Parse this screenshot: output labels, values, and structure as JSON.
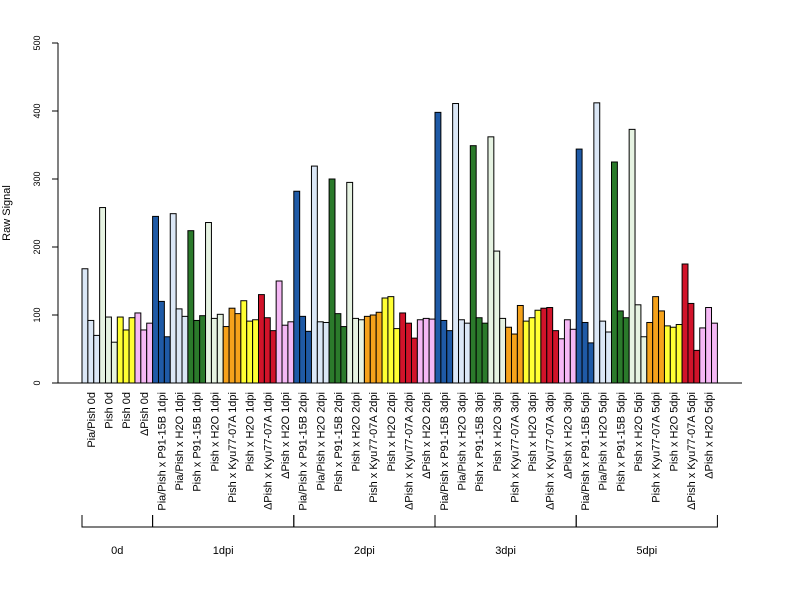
{
  "chart_data": {
    "type": "bar",
    "ylabel": "Raw Signal",
    "ylim": [
      0,
      500
    ],
    "yticks": [
      "0",
      "100",
      "200",
      "300",
      "400",
      "500"
    ],
    "grid": false,
    "colors": {
      "darkblue": "#1f5aa6",
      "lightblue": "#dbe7f6",
      "darkgreen": "#2b7a2b",
      "lightgreen": "#e6f3e2",
      "orange": "#f5a21b",
      "yellow": "#ffff33",
      "red": "#d1132a",
      "pink": "#f5b8f5"
    },
    "categories": [
      {
        "label": "Pia/Pish 0d",
        "color": "lightblue",
        "values": [
          168,
          92,
          70
        ]
      },
      {
        "label": "Pish 0d",
        "color": "lightgreen",
        "values": [
          258,
          97,
          60
        ]
      },
      {
        "label": "Pish 0d",
        "color": "yellow",
        "values": [
          97,
          78,
          96
        ]
      },
      {
        "label": "ΔPish 0d",
        "color": "pink",
        "values": [
          103,
          78,
          88
        ]
      },
      {
        "label": "Pia/Pish x P91-15B 1dpi",
        "color": "darkblue",
        "values": [
          245,
          120,
          68
        ]
      },
      {
        "label": "Pia/Pish x H2O 1dpi",
        "color": "lightblue",
        "values": [
          249,
          109,
          98
        ]
      },
      {
        "label": "Pish x P91-15B 1dpi",
        "color": "darkgreen",
        "values": [
          224,
          92,
          99
        ]
      },
      {
        "label": "Pish x H2O 1dpi",
        "color": "lightgreen",
        "values": [
          236,
          95,
          101
        ]
      },
      {
        "label": "Pish x Kyu77-07A 1dpi",
        "color": "orange",
        "values": [
          83,
          110,
          102
        ]
      },
      {
        "label": "Pish x H2O 1dpi",
        "color": "yellow",
        "values": [
          121,
          91,
          93
        ]
      },
      {
        "label": "ΔPish x Kyu77-07A 1dpi",
        "color": "red",
        "values": [
          130,
          96,
          77
        ]
      },
      {
        "label": "ΔPish x H2O 1dpi",
        "color": "pink",
        "values": [
          150,
          85,
          90
        ]
      },
      {
        "label": "Pia/Pish x P91-15B 2dpi",
        "color": "darkblue",
        "values": [
          282,
          98,
          76
        ]
      },
      {
        "label": "Pia/Pish x H2O 2dpi",
        "color": "lightblue",
        "values": [
          319,
          90,
          89
        ]
      },
      {
        "label": "Pish x P91-15B 2dpi",
        "color": "darkgreen",
        "values": [
          300,
          102,
          83
        ]
      },
      {
        "label": "Pish x H2O 2dpi",
        "color": "lightgreen",
        "values": [
          295,
          95,
          93
        ]
      },
      {
        "label": "Pish x Kyu77-07A 2dpi",
        "color": "orange",
        "values": [
          98,
          100,
          104
        ]
      },
      {
        "label": "Pish x H2O 2dpi",
        "color": "yellow",
        "values": [
          125,
          127,
          80
        ]
      },
      {
        "label": "ΔPish x Kyu77-07A 2dpi",
        "color": "red",
        "values": [
          103,
          88,
          66
        ]
      },
      {
        "label": "ΔPish x H2O 2dpi",
        "color": "pink",
        "values": [
          93,
          95,
          94
        ]
      },
      {
        "label": "Pia/Pish x P91-15B 3dpi",
        "color": "darkblue",
        "values": [
          398,
          92,
          77
        ]
      },
      {
        "label": "Pia/Pish x H2O 3dpi",
        "color": "lightblue",
        "values": [
          411,
          93,
          88
        ]
      },
      {
        "label": "Pish x P91-15B 3dpi",
        "color": "darkgreen",
        "values": [
          349,
          96,
          88
        ]
      },
      {
        "label": "Pish x H2O 3dpi",
        "color": "lightgreen",
        "values": [
          362,
          194,
          95
        ]
      },
      {
        "label": "Pish x Kyu77-07A 3dpi",
        "color": "orange",
        "values": [
          82,
          72,
          114
        ]
      },
      {
        "label": "Pish x H2O 3dpi",
        "color": "yellow",
        "values": [
          91,
          96,
          107
        ]
      },
      {
        "label": "ΔPish x Kyu77-07A 3dpi",
        "color": "red",
        "values": [
          110,
          111,
          77
        ]
      },
      {
        "label": "ΔPish x H2O 3dpi",
        "color": "pink",
        "values": [
          65,
          93,
          79
        ]
      },
      {
        "label": "Pia/Pish x P91-15B 5dpi",
        "color": "darkblue",
        "values": [
          344,
          89,
          59
        ]
      },
      {
        "label": "Pia/Pish x H2O 5dpi",
        "color": "lightblue",
        "values": [
          412,
          91,
          75
        ]
      },
      {
        "label": "Pish x P91-15B 5dpi",
        "color": "darkgreen",
        "values": [
          325,
          106,
          96
        ]
      },
      {
        "label": "Pish x H2O 5dpi",
        "color": "lightgreen",
        "values": [
          373,
          115,
          68
        ]
      },
      {
        "label": "Pish x Kyu77-07A 5dpi",
        "color": "orange",
        "values": [
          89,
          127,
          106
        ]
      },
      {
        "label": "Pish x H2O 5dpi",
        "color": "yellow",
        "values": [
          84,
          82,
          86
        ]
      },
      {
        "label": "ΔPish x Kyu77-07A 5dpi",
        "color": "red",
        "values": [
          175,
          117,
          48
        ]
      },
      {
        "label": "ΔPish x H2O 5dpi",
        "color": "pink",
        "values": [
          81,
          111,
          88
        ]
      }
    ],
    "groups": [
      {
        "label": "0d",
        "start": 0,
        "end": 3
      },
      {
        "label": "1dpi",
        "start": 4,
        "end": 11
      },
      {
        "label": "2dpi",
        "start": 12,
        "end": 19
      },
      {
        "label": "3dpi",
        "start": 20,
        "end": 27
      },
      {
        "label": "5dpi",
        "start": 28,
        "end": 35
      }
    ]
  }
}
